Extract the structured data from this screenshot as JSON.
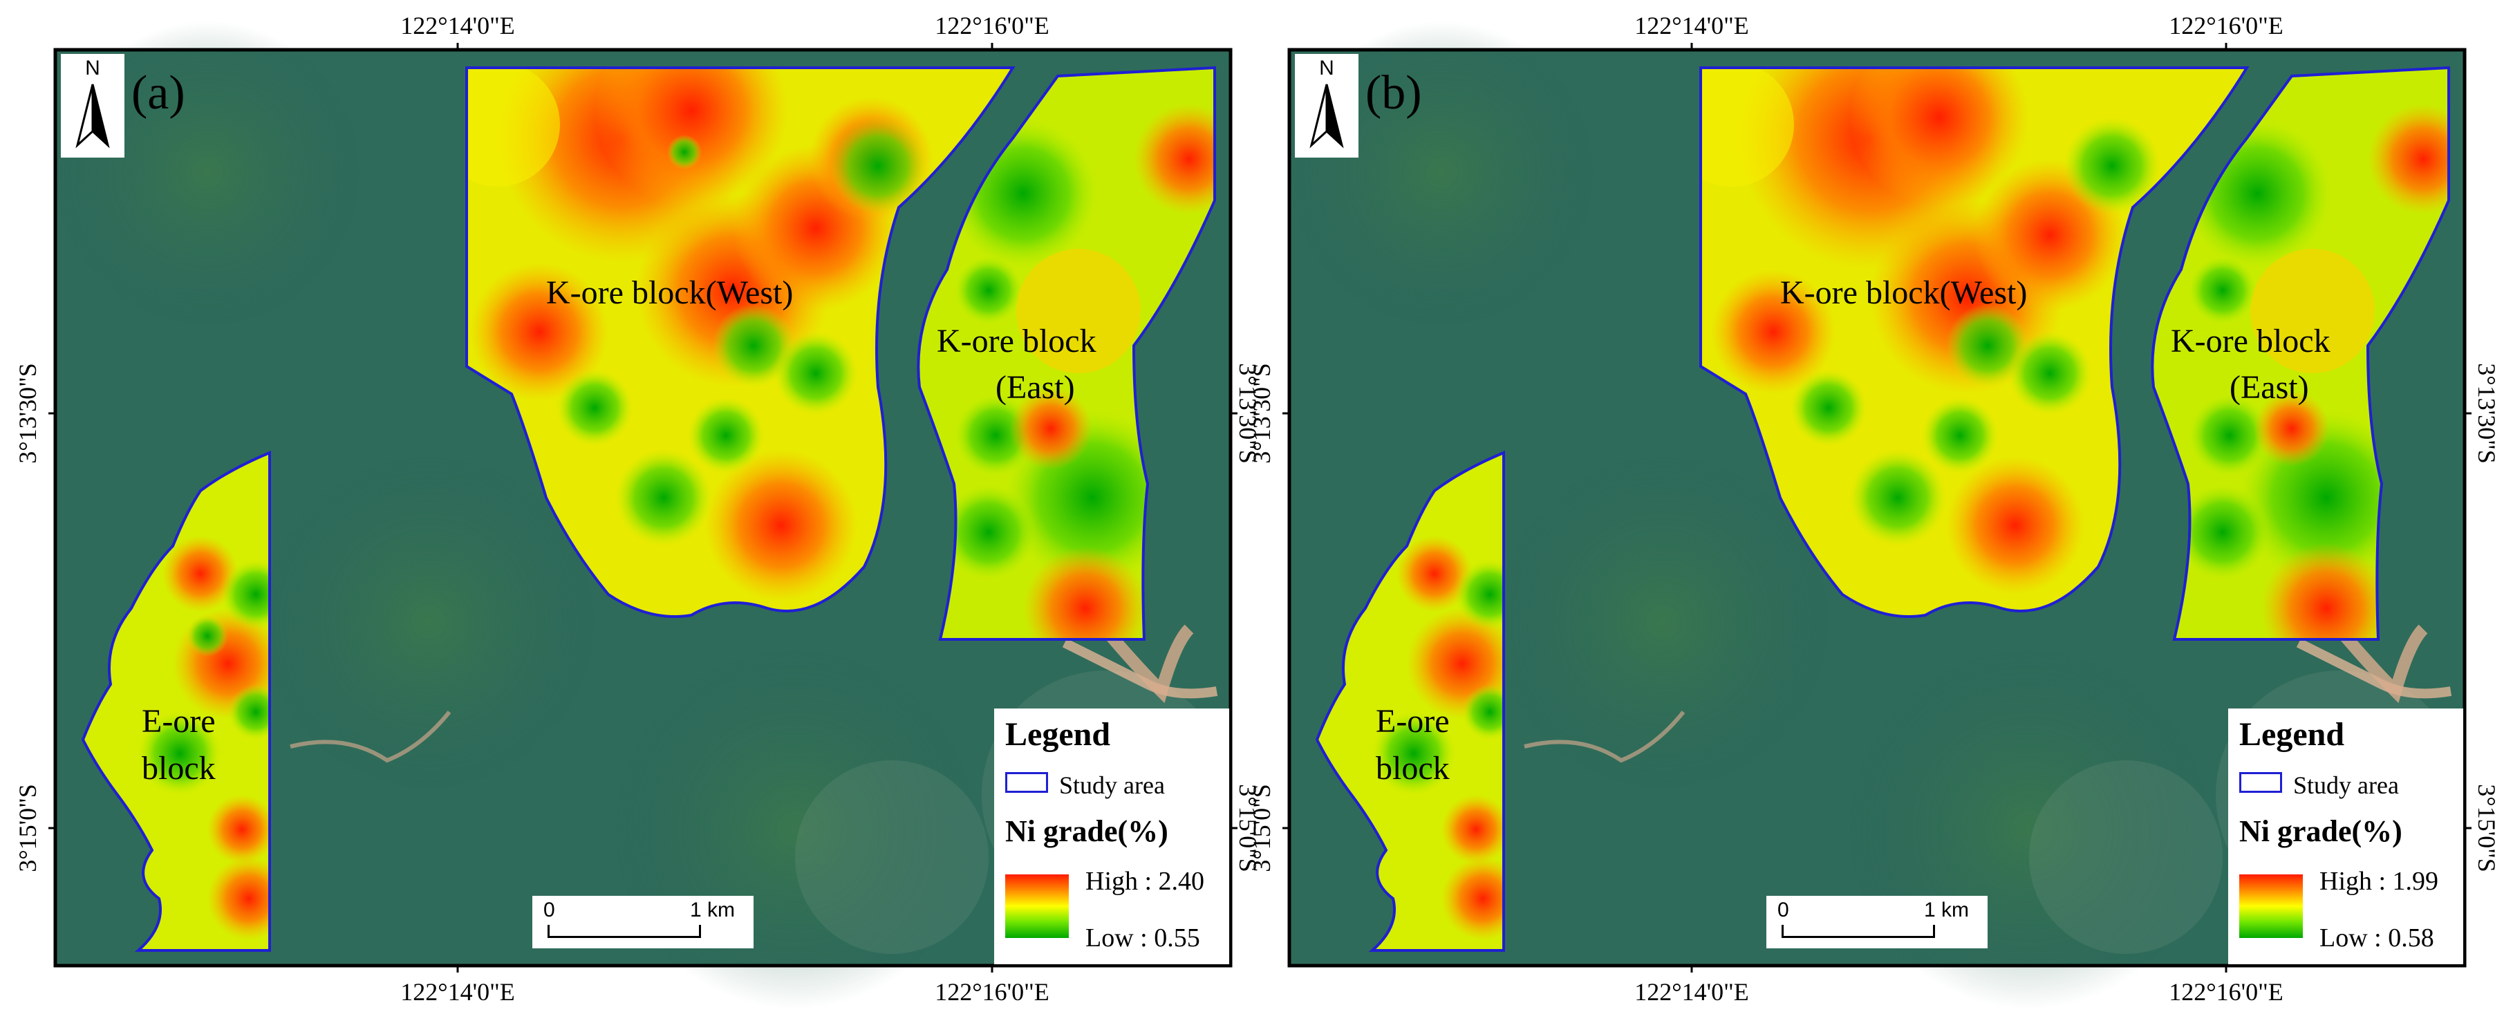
{
  "coordinates": {
    "lon_1": "122°14'0\"E",
    "lon_2": "122°16'0\"E",
    "lat_1": "3°13'30\"S",
    "lat_2": "3°15'0\"S"
  },
  "north_arrow": {
    "letter": "N",
    "icon": "north-arrow-icon"
  },
  "scale_bar": {
    "zero": "0",
    "one": "1 km"
  },
  "blocks": {
    "west": "K-ore block(West)",
    "east_line1": "K-ore block",
    "east_line2": "(East)",
    "e_line1": "E-ore",
    "e_line2": "block"
  },
  "colors": {
    "study_area_outline": "#1f1fd4",
    "high": "#ff1a00",
    "mid": "#ffff00",
    "low": "#00a800",
    "satellite_base": "#2f6b5a"
  },
  "panels": [
    {
      "label": "(a)",
      "legend": {
        "title": "Legend",
        "study_area": "Study area",
        "ni_title": "Ni grade(%)",
        "high": "High : 2.40",
        "low": "Low  : 0.55"
      }
    },
    {
      "label": "(b)",
      "legend": {
        "title": "Legend",
        "study_area": "Study area",
        "ni_title": "Ni grade(%)",
        "high": "High : 1.99",
        "low": "Low  : 0.58"
      }
    }
  ]
}
